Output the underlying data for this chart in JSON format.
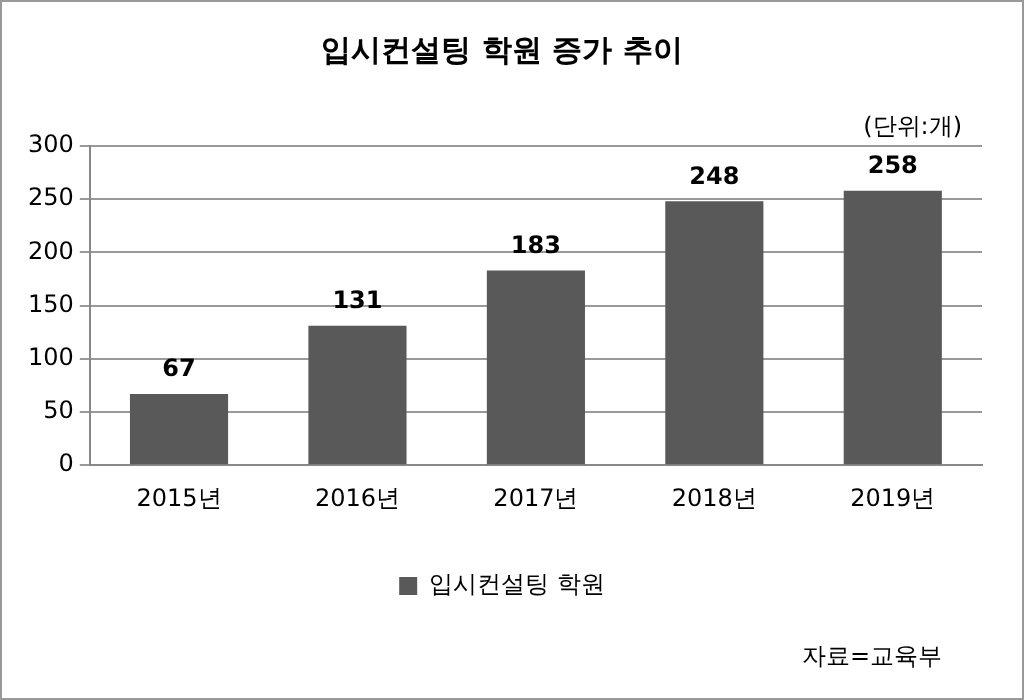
{
  "chart_data": {
    "type": "bar",
    "title": "입시컨설팅 학원 증가 추이",
    "categories": [
      "2015년",
      "2016년",
      "2017년",
      "2018년",
      "2019년"
    ],
    "series": [
      {
        "name": "입시컨설팅 학원",
        "color": "#595959",
        "values": [
          67,
          131,
          183,
          248,
          258
        ]
      }
    ],
    "ylim": [
      0,
      300
    ],
    "yticks": [
      0,
      50,
      100,
      150,
      200,
      250,
      300
    ],
    "grid": "y",
    "legend": "bottom",
    "data_labels": true,
    "annotations": [
      "(단위:개)",
      "자료=교육부"
    ]
  }
}
